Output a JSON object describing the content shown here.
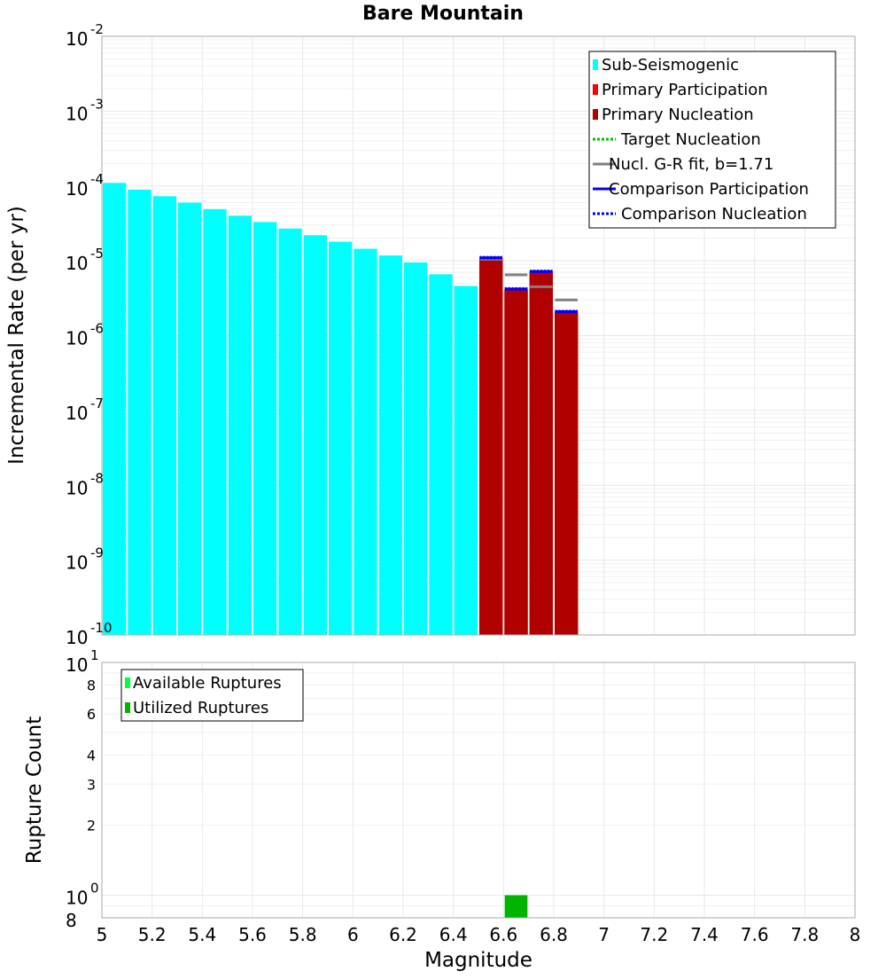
{
  "colors": {
    "sub_seismogenic": "#00ffff",
    "primary_participation": "#ff0000",
    "primary_nucleation": "#b00000",
    "target_nucleation": "#00bf00",
    "gr_fit": "#808080",
    "comparison": "#0000ff",
    "available": "#00ff40",
    "utilized": "#00b400"
  },
  "chart_data": [
    {
      "type": "bar",
      "title": "Bare Mountain",
      "xlabel": "",
      "ylabel": "Incremental Rate (per yr)",
      "xlim": [
        5,
        8
      ],
      "ylim": [
        1e-10,
        0.01
      ],
      "y_scale": "log",
      "y_ticks": [
        {
          "base": "10",
          "exp": "-2",
          "value": 0.01
        },
        {
          "base": "10",
          "exp": "-3",
          "value": 0.001
        },
        {
          "base": "10",
          "exp": "-4",
          "value": 0.0001
        },
        {
          "base": "10",
          "exp": "-5",
          "value": 1e-05
        },
        {
          "base": "10",
          "exp": "-6",
          "value": 1e-06
        },
        {
          "base": "10",
          "exp": "-7",
          "value": 1e-07
        },
        {
          "base": "10",
          "exp": "-8",
          "value": 1e-08
        },
        {
          "base": "10",
          "exp": "-9",
          "value": 1e-09
        },
        {
          "base": "10",
          "exp": "-10",
          "value": 1e-10
        }
      ],
      "legend_position": "top-right",
      "legend": [
        {
          "label": "Sub-Seismogenic",
          "style": "bar",
          "color": "#00ffff"
        },
        {
          "label": "Primary Participation",
          "style": "bar",
          "color": "#ff0000"
        },
        {
          "label": "Primary Nucleation",
          "style": "bar",
          "color": "#b00000"
        },
        {
          "label": "Target Nucleation",
          "style": "dotted",
          "color": "#00bf00"
        },
        {
          "label": "Nucl. G-R fit, b=1.71",
          "style": "solid",
          "color": "#808080"
        },
        {
          "label": "Comparison Participation",
          "style": "solid",
          "color": "#0000ff"
        },
        {
          "label": "Comparison Nucleation",
          "style": "dotted",
          "color": "#0000ff"
        }
      ],
      "series": [
        {
          "name": "Sub-Seismogenic",
          "x": [
            5.05,
            5.15,
            5.25,
            5.35,
            5.45,
            5.55,
            5.65,
            5.75,
            5.85,
            5.95,
            6.05,
            6.15,
            6.25,
            6.35,
            6.45
          ],
          "values": [
            0.00011,
            8.9e-05,
            7.3e-05,
            6e-05,
            4.9e-05,
            4e-05,
            3.3e-05,
            2.7e-05,
            2.2e-05,
            1.8e-05,
            1.45e-05,
            1.18e-05,
            9.5e-06,
            6.6e-06,
            4.6e-06
          ]
        },
        {
          "name": "Primary Participation",
          "x": [
            6.55,
            6.65,
            6.75,
            6.85
          ],
          "values": [
            1.1e-05,
            4.2e-06,
            7.2e-06,
            2.1e-06
          ]
        },
        {
          "name": "Primary Nucleation",
          "x": [
            6.55,
            6.65,
            6.75,
            6.85
          ],
          "values": [
            1.05e-05,
            4e-06,
            6.8e-06,
            2e-06
          ]
        },
        {
          "name": "Nucl. G-R fit, b=1.71",
          "x": [
            6.55,
            6.65,
            6.75,
            6.85
          ],
          "values": [
            1.05e-05,
            6.5e-06,
            4.5e-06,
            3e-06
          ]
        },
        {
          "name": "Comparison Participation",
          "x": [
            6.55,
            6.65,
            6.75,
            6.85
          ],
          "values": [
            1.1e-05,
            4.2e-06,
            7.2e-06,
            2.1e-06
          ]
        },
        {
          "name": "Comparison Nucleation",
          "x": [
            6.55,
            6.65,
            6.75,
            6.85
          ],
          "values": [
            1.1e-05,
            4.2e-06,
            7.2e-06,
            2.1e-06
          ]
        }
      ]
    },
    {
      "type": "bar",
      "title": "",
      "xlabel": "Magnitude",
      "ylabel": "Rupture Count",
      "xlim": [
        5,
        8
      ],
      "ylim": [
        0.8,
        10
      ],
      "y_scale": "log",
      "x_ticks": [
        "5",
        "5.2",
        "5.4",
        "5.6",
        "5.8",
        "6",
        "6.2",
        "6.4",
        "6.6",
        "6.8",
        "7",
        "7.2",
        "7.4",
        "7.6",
        "7.8",
        "8"
      ],
      "y_ticks": [
        {
          "base": "10",
          "exp": "1",
          "value": 10
        },
        {
          "base": "8",
          "exp": "",
          "value": 8,
          "minor": true
        },
        {
          "base": "6",
          "exp": "",
          "value": 6,
          "minor": true
        },
        {
          "base": "4",
          "exp": "",
          "value": 4,
          "minor": true
        },
        {
          "base": "3",
          "exp": "",
          "value": 3,
          "minor": true
        },
        {
          "base": "2",
          "exp": "",
          "value": 2,
          "minor": true
        },
        {
          "base": "10",
          "exp": "0",
          "value": 1
        },
        {
          "base": "8",
          "exp": "",
          "value": 0.8
        }
      ],
      "legend_position": "top-left",
      "legend": [
        {
          "label": "Available Ruptures",
          "style": "bar",
          "color": "#00ff40"
        },
        {
          "label": "Utilized Ruptures",
          "style": "bar",
          "color": "#00b400"
        }
      ],
      "series": [
        {
          "name": "Available Ruptures",
          "x": [
            6.65
          ],
          "values": [
            1
          ]
        },
        {
          "name": "Utilized Ruptures",
          "x": [
            6.65
          ],
          "values": [
            1
          ]
        }
      ]
    }
  ]
}
